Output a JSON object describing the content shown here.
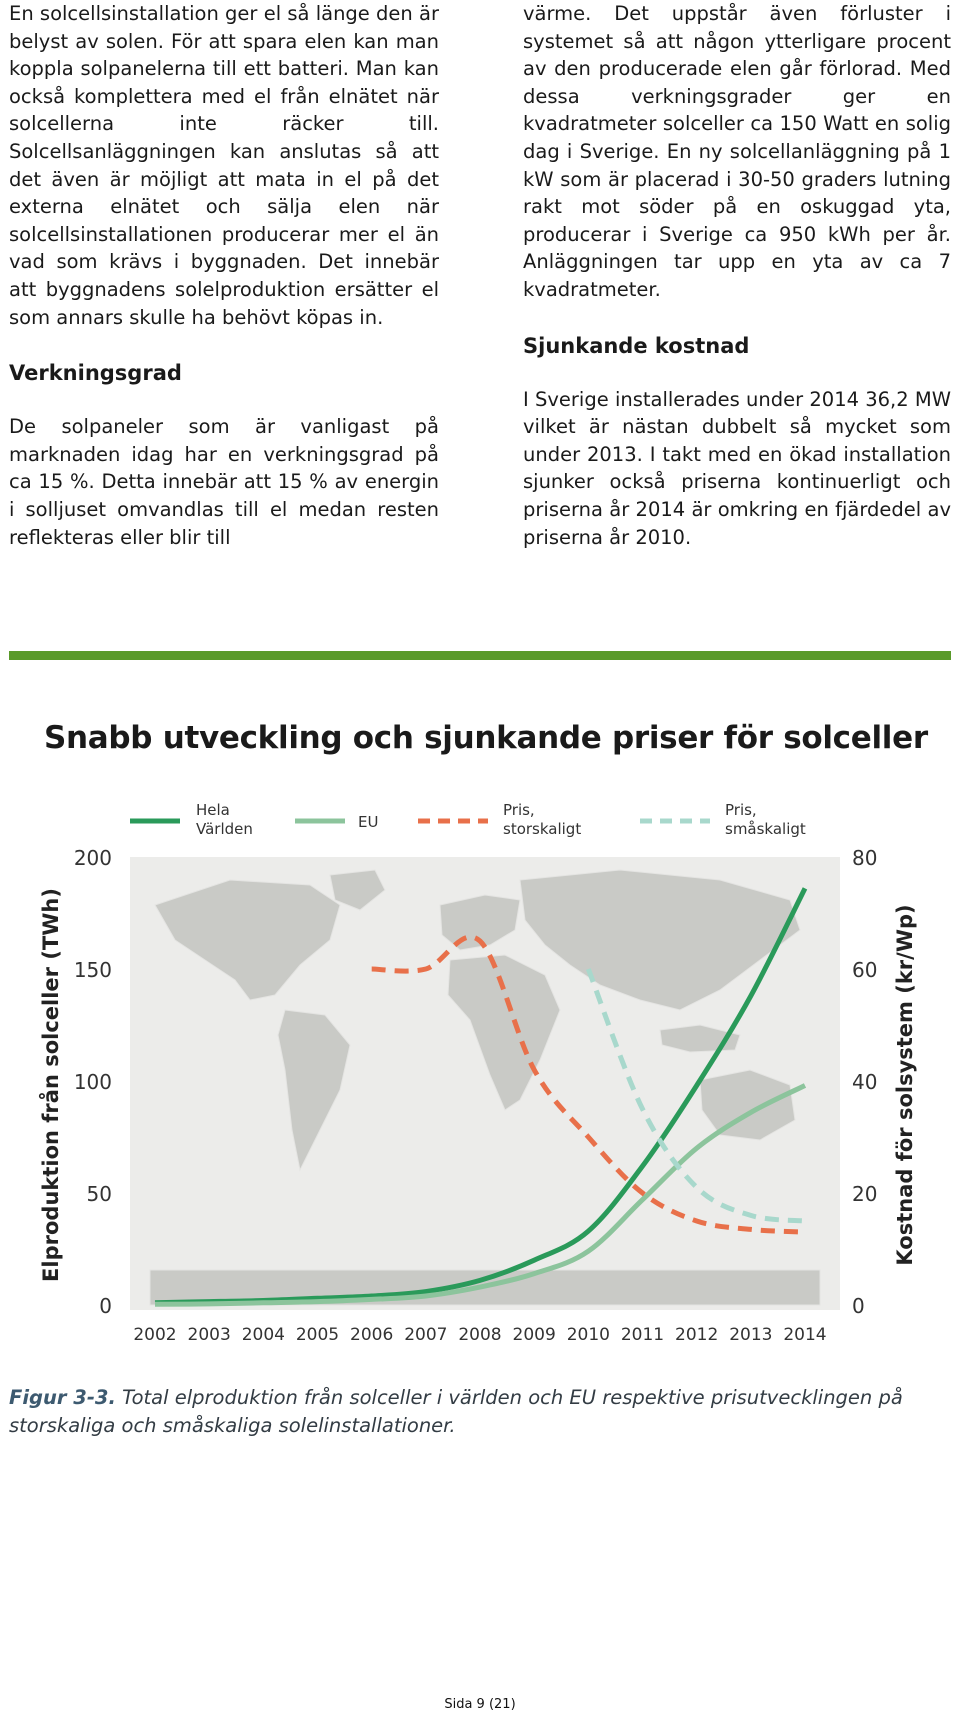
{
  "left_column": {
    "para1": "En solcellsinstallation ger el så länge den är belyst av solen. För att spara elen kan man koppla solpanelerna till ett batteri. Man kan också komplettera med el från elnätet när solcellerna inte räcker till. Solcellsanläggningen kan anslutas så att det även är möjligt att mata in el på det externa elnätet och sälja elen när solcellsinstallationen producerar mer el än vad som krävs i byggnaden. Det innebär att byggnadens solelproduktion ersätter el som annars skulle ha behövt köpas in.",
    "heading": "Verkningsgrad",
    "para2": "De solpaneler som är vanligast på marknaden idag har en verkningsgrad på ca 15 %. Detta innebär att 15 % av energin i solljuset omvandlas till el medan resten reflekteras eller blir till"
  },
  "right_column": {
    "para1": "värme. Det uppstår även förluster i systemet så att någon ytterligare procent av den producerade elen går förlorad. Med dessa verkningsgrader ger en kvadratmeter solceller ca 150 Watt en solig dag i Sverige. En ny solcellanläggning på 1 kW som är placerad i 30-50 graders lutning rakt mot söder på en oskuggad yta, producerar i Sverige ca 950 kWh per år. Anläggningen tar upp en yta av ca 7 kvadratmeter.",
    "heading": "Sjunkande kostnad",
    "para2": "I Sverige installerades under 2014 36,2 MW vilket är nästan dubbelt så mycket som under 2013. I takt med en ökad installation sjunker också priserna kontinuerligt och priserna år 2014 är omkring en fjärdedel av priserna år 2010."
  },
  "colors": {
    "rule": "#5a9a2a",
    "world": "#2a9a5a",
    "eu": "#8cc49c",
    "price_large": "#e8704a",
    "price_small": "#a8d8cc"
  },
  "chart_data": {
    "type": "line",
    "title": "Snabb utveckling och sjunkande priser för solceller",
    "ylabel_left": "Elproduktion  från solceller (TWh)",
    "ylabel_right": "Kostnad för solsystem (kr/Wp)",
    "ylim_left": [
      0,
      200
    ],
    "ylim_right": [
      0,
      80
    ],
    "yticks_left": [
      "0",
      "50",
      "100",
      "150",
      "200"
    ],
    "yticks_right": [
      "0",
      "20",
      "40",
      "60",
      "80"
    ],
    "x_labels": [
      "2002",
      "2003",
      "2004",
      "2005",
      "2006",
      "2007",
      "2008",
      "2009",
      "2010",
      "2011",
      "2012",
      "2013",
      "2014"
    ],
    "legend": [
      {
        "line1": "Hela",
        "line2": "Världen"
      },
      {
        "line1": "EU",
        "line2": ""
      },
      {
        "line1": "Pris,",
        "line2": "storskaligt"
      },
      {
        "line1": "Pris,",
        "line2": "småskaligt"
      }
    ],
    "series": [
      {
        "name": "Hela Världen",
        "axis": "left",
        "style": "solid",
        "x": [
          2002,
          2003,
          2004,
          2005,
          2006,
          2007,
          2008,
          2009,
          2010,
          2011,
          2012,
          2013,
          2014
        ],
        "values": [
          1,
          1.5,
          2,
          3,
          4,
          6,
          11,
          20,
          33,
          62,
          98,
          138,
          186
        ]
      },
      {
        "name": "EU",
        "axis": "left",
        "style": "solid",
        "x": [
          2002,
          2003,
          2004,
          2005,
          2006,
          2007,
          2008,
          2009,
          2010,
          2011,
          2012,
          2013,
          2014
        ],
        "values": [
          0.3,
          0.5,
          1,
          1.5,
          2.5,
          4,
          8,
          14,
          24,
          47,
          70,
          86,
          98
        ]
      },
      {
        "name": "Pris, storskaligt",
        "axis": "right",
        "style": "dashed",
        "x": [
          2006,
          2007,
          2008,
          2009,
          2010,
          2011,
          2012,
          2013,
          2014
        ],
        "values": [
          60,
          60,
          65,
          42,
          30,
          20,
          15,
          13.5,
          13
        ]
      },
      {
        "name": "Pris, småskaligt",
        "axis": "right",
        "style": "dashed",
        "x": [
          2010,
          2011,
          2012,
          2013,
          2014
        ],
        "values": [
          60,
          35,
          21,
          16,
          15
        ]
      }
    ]
  },
  "caption": {
    "label": "Figur 3-3.",
    "text": " Total elproduktion från solceller i världen och EU respektive prisutvecklingen på storskaliga och småskaliga solelinstallationer."
  },
  "footer": {
    "page": "Sida 9 (21)"
  }
}
